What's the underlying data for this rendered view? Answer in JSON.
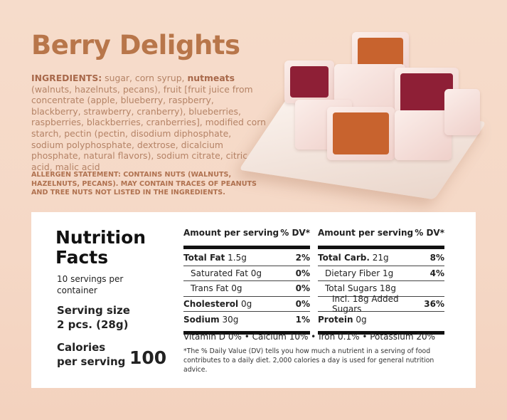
{
  "title": "Berry Delights",
  "ingredients": {
    "label": "INGREDIENTS:",
    "text1": " sugar, corn syrup, ",
    "bold2": "nutmeats",
    "text2": " (walnuts, hazelnuts, pecans), fruit [fruit juice from concentrate (apple, blueberry, raspberry, blackberry, strawberry, cranberry), blueberries, raspberries, blackberries, cranberries], modified corn starch, pectin (pectin, disodium diphosphate, sodium polyphosphate, dextrose, dicalcium phosphate, natural flavors), sodium citrate, citric acid, malic acid"
  },
  "allergen": "ALLERGEN STATEMENT: CONTAINS NUTS (WALNUTS, HAZELNUTS, PECANS). MAY CONTAIN TRACES OF PEANUTS AND TREE NUTS NOT LISTED IN THE INGREDIENTS.",
  "nutrition": {
    "title_line1": "Nutrition",
    "title_line2": "Facts",
    "servings": "10 servings per container",
    "serving_size_line1": "Serving size",
    "serving_size_line2": "2 pcs. (28g)",
    "calories_line1": "Calories",
    "calories_line2": "per serving",
    "calories": "100",
    "header_amount": "Amount per serving",
    "header_dv": "% DV*",
    "left": [
      {
        "name": "Total Fat",
        "amount": "1.5g",
        "dv": "2%",
        "bold": true
      },
      {
        "name": "Saturated Fat",
        "amount": "0g",
        "dv": "0%"
      },
      {
        "name": "Trans Fat",
        "amount": "0g",
        "dv": "0%"
      },
      {
        "name": "Cholesterol",
        "amount": "0g",
        "dv": "0%",
        "bold": true
      },
      {
        "name": "Sodium",
        "amount": "30g",
        "dv": "1%",
        "bold": true
      }
    ],
    "right": [
      {
        "name": "Total Carb.",
        "amount": "21g",
        "dv": "8%",
        "bold": true
      },
      {
        "name": "Dietary Fiber",
        "amount": "1g",
        "dv": "4%"
      },
      {
        "name": "Total Sugars",
        "amount": "18g",
        "dv": ""
      },
      {
        "name": "Incl. 18g Added Sugars",
        "amount": "",
        "dv": "36%"
      },
      {
        "name": "Protein",
        "amount": "0g",
        "dv": "",
        "bold": true
      }
    ],
    "vitamins": "Vitamin D 0% • Calcium 10% • Iron 0.1% • Potassium 20%",
    "footnote": "*The % Daily Value (DV) tells you how much a nutrient in a serving of food contributes to a daily diet. 2,000 calories a day is used for general nutrition advice."
  }
}
